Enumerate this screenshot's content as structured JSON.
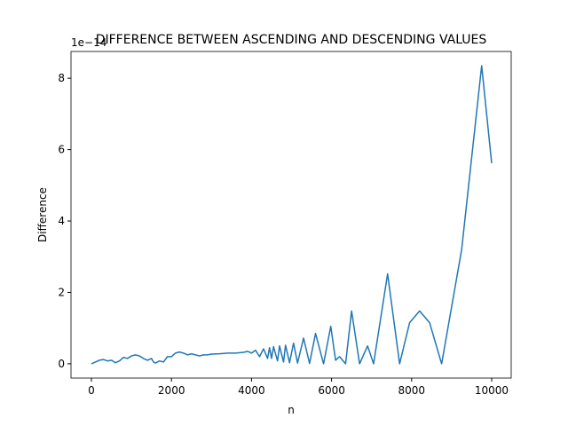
{
  "chart_data": {
    "type": "line",
    "title": "DIFFERENCE BETWEEN ASCENDING AND DESCENDING VALUES",
    "x_label": "n",
    "y_label": "Difference",
    "y_offset_label": "1e−14",
    "x": [
      0,
      100,
      200,
      300,
      400,
      500,
      600,
      700,
      800,
      900,
      1000,
      1100,
      1200,
      1300,
      1400,
      1500,
      1550,
      1600,
      1700,
      1800,
      1900,
      2000,
      2100,
      2200,
      2300,
      2400,
      2500,
      2600,
      2700,
      2800,
      2900,
      3000,
      3200,
      3400,
      3600,
      3800,
      3900,
      4000,
      4100,
      4200,
      4300,
      4400,
      4450,
      4500,
      4550,
      4650,
      4700,
      4800,
      4850,
      4950,
      5050,
      5150,
      5300,
      5450,
      5600,
      5800,
      5980,
      6100,
      6200,
      6350,
      6500,
      6700,
      6900,
      7050,
      7400,
      7700,
      7950,
      8200,
      8450,
      8750,
      9250,
      9750,
      10000
    ],
    "series": [
      {
        "name": "difference",
        "color": "#1f77b4",
        "values": [
          0,
          0.05,
          0.1,
          0.12,
          0.08,
          0.1,
          0.03,
          0.08,
          0.18,
          0.15,
          0.22,
          0.25,
          0.22,
          0.15,
          0.1,
          0.15,
          0.05,
          0.02,
          0.08,
          0.05,
          0.2,
          0.2,
          0.3,
          0.33,
          0.3,
          0.25,
          0.28,
          0.25,
          0.22,
          0.25,
          0.25,
          0.27,
          0.28,
          0.3,
          0.3,
          0.32,
          0.35,
          0.3,
          0.38,
          0.2,
          0.42,
          0.15,
          0.45,
          0.15,
          0.48,
          0.08,
          0.5,
          0.05,
          0.52,
          0.03,
          0.58,
          0.02,
          0.72,
          0.01,
          0.85,
          0,
          1.05,
          0.1,
          0.2,
          0,
          1.48,
          0,
          0.5,
          0,
          2.52,
          0,
          1.15,
          1.48,
          1.15,
          0,
          3.2,
          8.35,
          5.62
        ]
      }
    ],
    "xlim": [
      -510,
      10488
    ],
    "xticks": [
      0,
      2000,
      4000,
      6000,
      8000,
      10000
    ],
    "ylim": [
      -0.4,
      8.75
    ],
    "yticks": [
      0,
      2,
      4,
      6,
      8
    ]
  }
}
